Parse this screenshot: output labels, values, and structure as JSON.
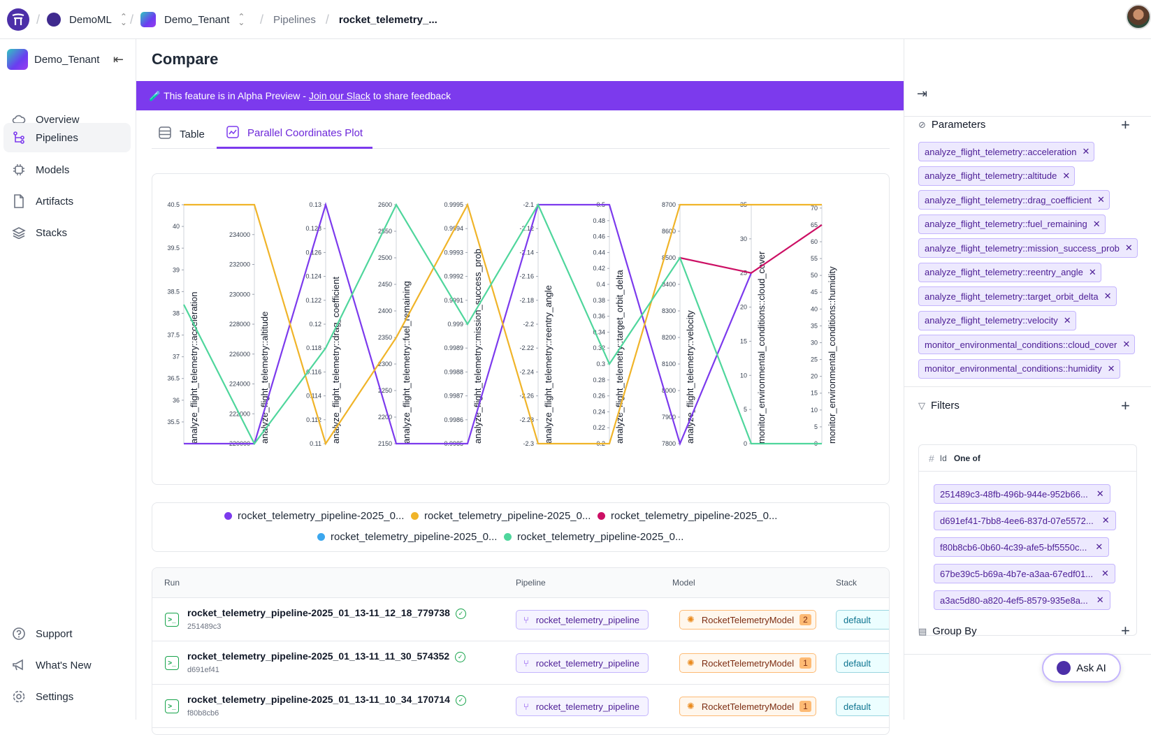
{
  "topbar": {
    "workspace": "DemoML",
    "tenant": "Demo_Tenant",
    "crumb_pipelines": "Pipelines",
    "crumb_current": "rocket_telemetry_..."
  },
  "sidebar": {
    "tenant": "Demo_Tenant",
    "items": [
      {
        "label": "Overview",
        "icon": "cloud-icon"
      },
      {
        "label": "Pipelines",
        "icon": "pipeline-icon",
        "active": true
      },
      {
        "label": "Models",
        "icon": "model-icon"
      },
      {
        "label": "Artifacts",
        "icon": "file-icon"
      },
      {
        "label": "Stacks",
        "icon": "stack-icon"
      }
    ],
    "bottom": [
      {
        "label": "Support",
        "icon": "help-icon"
      },
      {
        "label": "What's New",
        "icon": "megaphone-icon"
      },
      {
        "label": "Settings",
        "icon": "gear-icon"
      }
    ]
  },
  "main": {
    "title": "Compare",
    "banner": {
      "pre": "🧪 This feature is in Alpha Preview -",
      "link": "Join our Slack",
      "post": "to share feedback"
    },
    "tabs": [
      {
        "label": "Table"
      },
      {
        "label": "Parallel Coordinates Plot",
        "active": true
      }
    ]
  },
  "chart_data": {
    "type": "parallel_coordinates",
    "axes": [
      {
        "label": "analyze_flight_telemetry::acceleration",
        "ticks": [
          "40.5",
          "40",
          "39.5",
          "39",
          "38.5",
          "38",
          "37.5",
          "37",
          "36.5",
          "36",
          "35.5"
        ],
        "range": [
          35,
          40.5
        ]
      },
      {
        "label": "analyze_flight_telemetry::altitude",
        "ticks": [
          "234000",
          "232000",
          "230000",
          "228000",
          "226000",
          "224000",
          "222000",
          "220000"
        ],
        "range": [
          220000,
          236000
        ]
      },
      {
        "label": "analyze_flight_telemetry::drag_coefficient",
        "ticks": [
          "0.13",
          "0.128",
          "0.126",
          "0.124",
          "0.122",
          "0.12",
          "0.118",
          "0.116",
          "0.114",
          "0.112",
          "0.11"
        ],
        "range": [
          0.11,
          0.13
        ]
      },
      {
        "label": "analyze_flight_telemetry::fuel_remaining",
        "ticks": [
          "2600",
          "2550",
          "2500",
          "2450",
          "2400",
          "2350",
          "2300",
          "2250",
          "2200",
          "2150"
        ],
        "range": [
          2150,
          2600
        ]
      },
      {
        "label": "analyze_flight_telemetry::mission_success_prob",
        "ticks": [
          "0.9995",
          "0.9994",
          "0.9993",
          "0.9992",
          "0.9991",
          "0.999",
          "0.9989",
          "0.9988",
          "0.9987",
          "0.9986",
          "0.9985"
        ],
        "range": [
          0.9985,
          0.9995
        ]
      },
      {
        "label": "analyze_flight_telemetry::reentry_angle",
        "ticks": [
          "-2.1",
          "-2.12",
          "-2.14",
          "-2.16",
          "-2.18",
          "-2.2",
          "-2.22",
          "-2.24",
          "-2.26",
          "-2.28",
          "-2.3"
        ],
        "range": [
          -2.3,
          -2.1
        ]
      },
      {
        "label": "analyze_flight_telemetry::target_orbit_delta",
        "ticks": [
          "0.5",
          "0.48",
          "0.46",
          "0.44",
          "0.42",
          "0.4",
          "0.38",
          "0.36",
          "0.34",
          "0.32",
          "0.3",
          "0.28",
          "0.26",
          "0.24",
          "0.22",
          "0.2"
        ],
        "range": [
          0.2,
          0.5
        ]
      },
      {
        "label": "analyze_flight_telemetry::velocity",
        "ticks": [
          "8700",
          "8600",
          "8500",
          "8400",
          "8300",
          "8200",
          "8100",
          "8000",
          "7900",
          "7800"
        ],
        "range": [
          7800,
          8700
        ]
      },
      {
        "label": "monitor_environmental_conditions::cloud_cover",
        "ticks": [
          "35",
          "30",
          "25",
          "20",
          "15",
          "10",
          "5",
          "0"
        ],
        "range": [
          0,
          35
        ]
      },
      {
        "label": "monitor_environmental_conditions::humidity",
        "ticks": [
          "70",
          "65",
          "60",
          "55",
          "50",
          "45",
          "40",
          "35",
          "30",
          "25",
          "20",
          "15",
          "10",
          "5",
          "0"
        ],
        "range": [
          0,
          71
        ]
      }
    ],
    "series": [
      {
        "name": "rocket_telemetry_pipeline-2025_0...",
        "color": "#7c3aed",
        "values": [
          35,
          220000,
          0.13,
          2150,
          0.9985,
          -2.1,
          0.5,
          7800,
          25,
          null
        ]
      },
      {
        "name": "rocket_telemetry_pipeline-2025_0...",
        "color": "#f0b429",
        "values": [
          40.5,
          236000,
          0.11,
          2350,
          0.9995,
          -2.3,
          0.2,
          8700,
          35,
          71
        ]
      },
      {
        "name": "rocket_telemetry_pipeline-2025_0...",
        "color": "#cc0f64",
        "values": [
          null,
          null,
          null,
          null,
          null,
          null,
          null,
          8500,
          25,
          65
        ]
      },
      {
        "name": "rocket_telemetry_pipeline-2025_0...",
        "color": "#3ba7ee",
        "values": [
          null,
          null,
          null,
          null,
          null,
          null,
          null,
          null,
          null,
          null
        ]
      },
      {
        "name": "rocket_telemetry_pipeline-2025_0...",
        "color": "#4fd69c",
        "values": [
          38.2,
          220000,
          0.118,
          2600,
          0.999,
          -2.1,
          0.3,
          8500,
          0,
          0
        ]
      }
    ]
  },
  "legend": [
    {
      "label": "rocket_telemetry_pipeline-2025_0...",
      "color": "#7c3aed"
    },
    {
      "label": "rocket_telemetry_pipeline-2025_0...",
      "color": "#f0b429"
    },
    {
      "label": "rocket_telemetry_pipeline-2025_0...",
      "color": "#cc0f64"
    },
    {
      "label": "rocket_telemetry_pipeline-2025_0...",
      "color": "#3ba7ee"
    },
    {
      "label": "rocket_telemetry_pipeline-2025_0...",
      "color": "#4fd69c"
    }
  ],
  "table": {
    "headers": {
      "run": "Run",
      "pipeline": "Pipeline",
      "model": "Model",
      "stack": "Stack"
    },
    "rows": [
      {
        "name": "rocket_telemetry_pipeline-2025_01_13-11_12_18_779738",
        "id": "251489c3",
        "pipeline": "rocket_telemetry_pipeline",
        "model": "RocketTelemetryModel",
        "version": "2",
        "stack": "default"
      },
      {
        "name": "rocket_telemetry_pipeline-2025_01_13-11_11_30_574352",
        "id": "d691ef41",
        "pipeline": "rocket_telemetry_pipeline",
        "model": "RocketTelemetryModel",
        "version": "1",
        "stack": "default"
      },
      {
        "name": "rocket_telemetry_pipeline-2025_01_13-11_10_34_170714",
        "id": "f80b8cb6",
        "pipeline": "rocket_telemetry_pipeline",
        "model": "RocketTelemetryModel",
        "version": "1",
        "stack": "default"
      }
    ]
  },
  "right_panel": {
    "parameters_title": "Parameters",
    "parameters": [
      "analyze_flight_telemetry::acceleration",
      "analyze_flight_telemetry::altitude",
      "analyze_flight_telemetry::drag_coefficient",
      "analyze_flight_telemetry::fuel_remaining",
      "analyze_flight_telemetry::mission_success_prob",
      "analyze_flight_telemetry::reentry_angle",
      "analyze_flight_telemetry::target_orbit_delta",
      "analyze_flight_telemetry::velocity",
      "monitor_environmental_conditions::cloud_cover",
      "monitor_environmental_conditions::humidity"
    ],
    "filters_title": "Filters",
    "filter": {
      "field": "Id",
      "operator": "One of",
      "values": [
        "251489c3-48fb-496b-944e-952b66...",
        "d691ef41-7bb8-4ee6-837d-07e5572...",
        "f80b8cb6-0b60-4c39-afe5-bf5550c...",
        "67be39c5-b69a-4b7e-a3aa-67edf01...",
        "a3ac5d80-a820-4ef5-8579-935e8a..."
      ]
    },
    "groupby_title": "Group By"
  },
  "ask_ai": "Ask AI"
}
